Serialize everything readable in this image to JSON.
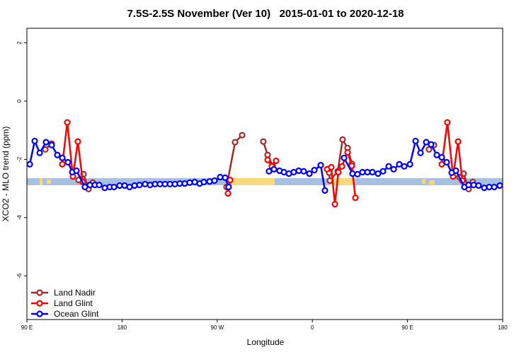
{
  "chart_data": {
    "type": "line",
    "title": "7.5S-2.5S November (Ver 10)   2015-01-01 to 2020-12-18",
    "x_label": "Longitude",
    "y_label": "XCO2 - MLO trend (ppm)",
    "xlim": [
      90,
      540
    ],
    "ylim": [
      -7.5,
      2.5
    ],
    "xticks": [
      {
        "value": 90,
        "label": "90 E"
      },
      180,
      {
        "value": 270,
        "label": "90 W"
      },
      {
        "value": 360,
        "label": "0"
      },
      {
        "value": 450,
        "label": "90 E"
      },
      {
        "value": 540,
        "label": "180"
      }
    ],
    "yticks": [
      2,
      0,
      -2,
      -4,
      -6
    ],
    "legend": "bottom-left",
    "series": [
      {
        "name": "Land Nadir",
        "color": "#a52a2a",
        "x": [
          107.4,
          113.4,
          null,
          138.9,
          143.6,
          148.3,
          152.3,
          null,
          278.8,
          286.9,
          293.6,
          null,
          313.6,
          317.7,
          322.4,
          null,
          375.9,
          376.6,
          384.0,
          388.6,
          393.3,
          397.3,
          null,
          470.3,
          475.0,
          null,
          499.1,
          503.1,
          507.8,
          511.8
        ],
        "values": [
          -1.66,
          -1.46,
          null,
          -2.71,
          -2.51,
          -3.02,
          -2.8,
          null,
          -2.95,
          -1.41,
          -1.17,
          null,
          -1.39,
          -1.85,
          -2.22,
          null,
          -2.46,
          -2.73,
          -2.41,
          -1.32,
          -1.61,
          -2.15,
          null,
          -1.66,
          -1.51,
          null,
          -2.61,
          -2.49,
          -3.02,
          -2.78
        ]
      },
      {
        "name": "Land Glint",
        "color": "#ff0000",
        "x": [
          123.5,
          128.2,
          133.5,
          138.2,
          142.9,
          null,
          280.2,
          282.2,
          null,
          317.7,
          321.7,
          325.7,
          null,
          373.9,
          377.9,
          381.3,
          384.6,
          388.0,
          393.3,
          397.3,
          400.7,
          null,
          482.4,
          487.7,
          493.1,
          497.8,
          501.8
        ],
        "values": [
          -2.17,
          -0.73,
          -2.59,
          -1.39,
          -2.78,
          null,
          -3.17,
          -2.71,
          null,
          -2.02,
          -2.24,
          -2.05,
          null,
          -2.34,
          -2.27,
          -3.54,
          -2.44,
          -2.24,
          -1.76,
          -2.22,
          -3.32,
          null,
          -2.17,
          -0.73,
          -2.59,
          -1.39,
          -2.73
        ]
      },
      {
        "name": "Ocean Glint",
        "color": "#0000ff",
        "x": [
          92.7,
          97.4,
          102.1,
          108.1,
          113.4,
          118.8,
          123.5,
          128.8,
          132.9,
          136.9,
          144.9,
          149.6,
          154.3,
          158.3,
          163.7,
          168.4,
          172.4,
          177.7,
          182.4,
          187.1,
          191.8,
          196.5,
          201.8,
          206.5,
          211.2,
          215.9,
          220.6,
          225.3,
          230.0,
          234.6,
          239.3,
          244.0,
          248.7,
          253.4,
          257.4,
          262.8,
          267.4,
          272.8,
          277.5,
          280.8,
          null,
          319.0,
          323.7,
          329.0,
          333.1,
          337.8,
          342.4,
          347.1,
          351.8,
          357.2,
          361.9,
          367.9,
          371.9,
          null,
          390.0,
          398.0,
          402.7,
          407.4,
          412.1,
          416.8,
          422.1,
          426.8,
          432.2,
          436.9,
          442.2,
          446.9,
          452.3,
          457.6,
          462.3,
          467.7,
          472.3,
          477.7,
          482.4,
          487.1,
          491.8,
          495.8,
          503.8,
          507.8,
          512.5,
          517.2,
          522.6,
          527.3,
          532.0,
          537.3
        ],
        "values": [
          -2.17,
          -1.37,
          -1.78,
          -1.41,
          -1.51,
          -1.85,
          -1.95,
          -2.1,
          -2.44,
          -2.39,
          -2.95,
          -2.88,
          -2.88,
          -2.88,
          -2.98,
          -2.95,
          -2.95,
          -2.9,
          -2.9,
          -2.95,
          -2.9,
          -2.88,
          -2.85,
          -2.88,
          -2.85,
          -2.85,
          -2.85,
          -2.85,
          -2.85,
          -2.83,
          -2.83,
          -2.8,
          -2.78,
          -2.83,
          -2.78,
          -2.76,
          -2.73,
          -2.61,
          -2.63,
          -2.95,
          null,
          -2.41,
          -2.34,
          -2.39,
          -2.44,
          -2.49,
          -2.44,
          -2.39,
          -2.41,
          -2.49,
          -2.37,
          -2.2,
          -3.07,
          null,
          -1.95,
          -2.49,
          -2.51,
          -2.44,
          -2.44,
          -2.44,
          -2.49,
          -2.41,
          -2.24,
          -2.34,
          -2.17,
          -2.24,
          -2.17,
          -1.37,
          -1.78,
          -1.41,
          -1.49,
          -1.85,
          -1.93,
          -2.1,
          -2.46,
          -2.39,
          -2.95,
          -2.88,
          -2.88,
          -2.9,
          -2.98,
          -2.95,
          -2.95,
          -2.9
        ]
      }
    ]
  }
}
